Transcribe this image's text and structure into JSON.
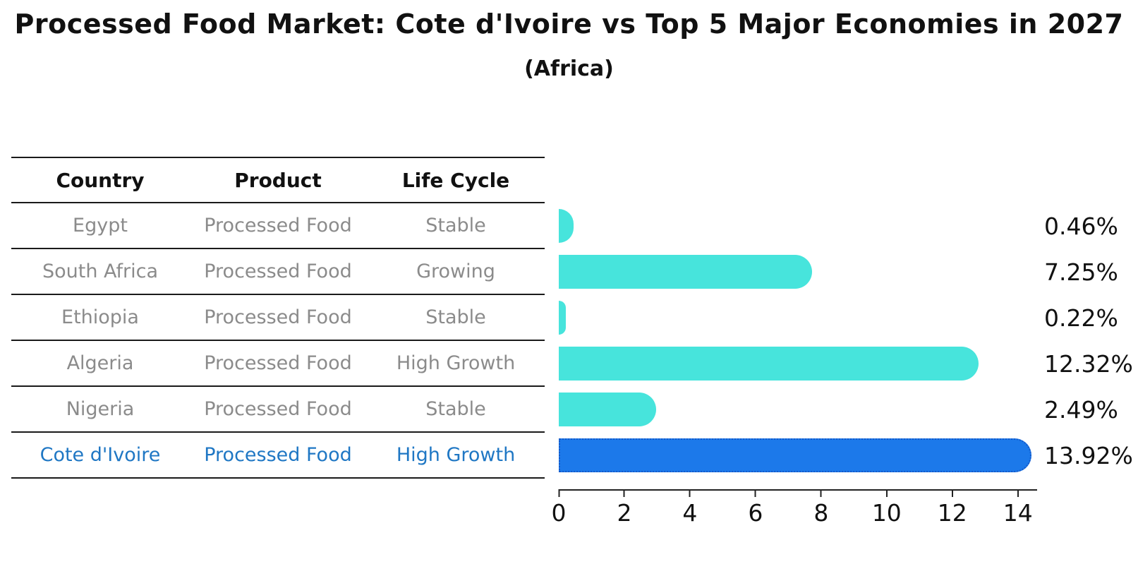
{
  "title": "Processed Food Market: Cote d'Ivoire vs Top 5 Major Economies in 2027",
  "subtitle": "(Africa)",
  "table": {
    "headers": [
      "Country",
      "Product",
      "Life Cycle"
    ],
    "rows": [
      {
        "country": "Egypt",
        "product": "Processed Food",
        "life_cycle": "Stable",
        "highlight": false
      },
      {
        "country": "South Africa",
        "product": "Processed Food",
        "life_cycle": "Growing",
        "highlight": false
      },
      {
        "country": "Ethiopia",
        "product": "Processed Food",
        "life_cycle": "Stable",
        "highlight": false
      },
      {
        "country": "Algeria",
        "product": "Processed Food",
        "life_cycle": "High Growth",
        "highlight": false
      },
      {
        "country": "Nigeria",
        "product": "Processed Food",
        "life_cycle": "Stable",
        "highlight": false
      },
      {
        "country": "Cote d'Ivoire",
        "product": "Processed Food",
        "life_cycle": "High Growth",
        "highlight": true
      }
    ]
  },
  "chart_data": {
    "type": "bar",
    "orientation": "horizontal",
    "title": "Processed Food Market: Cote d'Ivoire vs Top 5 Major Economies in 2027",
    "subtitle": "(Africa)",
    "categories": [
      "Egypt",
      "South Africa",
      "Ethiopia",
      "Algeria",
      "Nigeria",
      "Cote d'Ivoire"
    ],
    "values": [
      0.46,
      7.25,
      0.22,
      12.32,
      2.49,
      13.92
    ],
    "value_labels": [
      "0.46%",
      "7.25%",
      "0.22%",
      "12.32%",
      "2.49%",
      "13.92%"
    ],
    "unit": "%",
    "xlim": [
      0,
      14.5
    ],
    "x_ticks": [
      0,
      2,
      4,
      6,
      8,
      10,
      12,
      14
    ],
    "highlight_index": 5,
    "grid": false,
    "legend": false
  },
  "style": {
    "bar_color": "#47E4DC",
    "highlight_bar_color": "#1C79EA",
    "highlight_border_color": "#1559C9",
    "highlight_text_color": "#1F77C4",
    "row_text_color": "#8B8B8B",
    "header_text_color": "#111111",
    "axis_color": "#222222"
  }
}
